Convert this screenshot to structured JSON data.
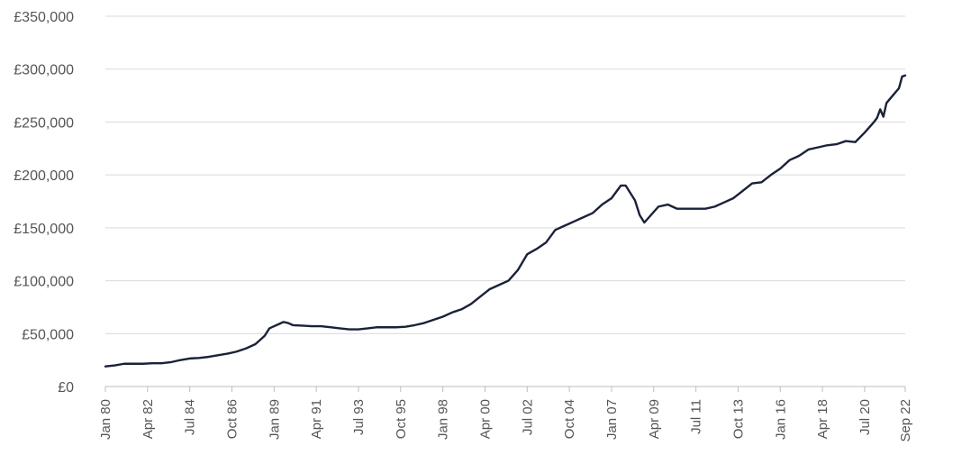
{
  "chart_data": {
    "type": "line",
    "title": "",
    "xlabel": "",
    "ylabel": "",
    "ylim": [
      0,
      350000
    ],
    "y_ticks": [
      0,
      50000,
      100000,
      150000,
      200000,
      250000,
      300000,
      350000
    ],
    "y_tick_labels": [
      "£0",
      "£50,000",
      "£100,000",
      "£150,000",
      "£200,000",
      "£250,000",
      "£300,000",
      "£350,000"
    ],
    "grid": true,
    "legend": "none",
    "x_tick_labels": [
      "Jan 80",
      "Apr 82",
      "Jul 84",
      "Oct 86",
      "Jan 89",
      "Apr 91",
      "Jul 93",
      "Oct 95",
      "Jan 98",
      "Apr 00",
      "Jul 02",
      "Oct 04",
      "Jan 07",
      "Apr 09",
      "Jul 11",
      "Oct 13",
      "Jan 16",
      "Apr 18",
      "Jul 20",
      "Sep 22"
    ],
    "x_tick_dates": [
      "1980-01",
      "1982-04",
      "1984-07",
      "1986-10",
      "1989-01",
      "1991-04",
      "1993-07",
      "1995-10",
      "1998-01",
      "2000-04",
      "2002-07",
      "2004-10",
      "2007-01",
      "2009-04",
      "2011-07",
      "2013-10",
      "2016-01",
      "2018-04",
      "2020-07",
      "2022-09"
    ],
    "xlim": [
      "1980-01",
      "2022-09"
    ],
    "series": [
      {
        "color": "#1a2238",
        "x": [
          "1980-01",
          "1980-07",
          "1981-01",
          "1981-07",
          "1982-01",
          "1982-07",
          "1983-01",
          "1983-07",
          "1984-01",
          "1984-07",
          "1985-01",
          "1985-07",
          "1986-01",
          "1986-07",
          "1987-01",
          "1987-07",
          "1988-01",
          "1988-04",
          "1988-07",
          "1988-10",
          "1989-01",
          "1989-04",
          "1989-07",
          "1989-10",
          "1990-01",
          "1990-07",
          "1991-01",
          "1991-07",
          "1992-01",
          "1992-07",
          "1993-01",
          "1993-07",
          "1994-01",
          "1994-07",
          "1995-01",
          "1995-07",
          "1996-01",
          "1996-07",
          "1997-01",
          "1997-07",
          "1998-01",
          "1998-07",
          "1999-01",
          "1999-07",
          "2000-01",
          "2000-07",
          "2001-01",
          "2001-07",
          "2002-01",
          "2002-07",
          "2003-01",
          "2003-07",
          "2004-01",
          "2004-07",
          "2005-01",
          "2005-07",
          "2006-01",
          "2006-07",
          "2007-01",
          "2007-07",
          "2007-10",
          "2008-01",
          "2008-04",
          "2008-07",
          "2008-10",
          "2009-01",
          "2009-04",
          "2009-07",
          "2010-01",
          "2010-07",
          "2011-01",
          "2011-07",
          "2012-01",
          "2012-07",
          "2013-01",
          "2013-07",
          "2014-01",
          "2014-07",
          "2015-01",
          "2015-07",
          "2016-01",
          "2016-07",
          "2017-01",
          "2017-07",
          "2018-01",
          "2018-07",
          "2019-01",
          "2019-07",
          "2020-01",
          "2020-07",
          "2021-01",
          "2021-03",
          "2021-05",
          "2021-07",
          "2021-09",
          "2022-01",
          "2022-05",
          "2022-07",
          "2022-09"
        ],
        "y": [
          19000,
          20000,
          21500,
          21500,
          21500,
          22000,
          22000,
          23000,
          25000,
          26500,
          27000,
          28000,
          29500,
          31000,
          33000,
          36000,
          40000,
          44000,
          48000,
          55000,
          57000,
          59000,
          61000,
          60000,
          58000,
          57500,
          57000,
          57000,
          56000,
          55000,
          54000,
          54000,
          55000,
          56000,
          56000,
          56000,
          56500,
          58000,
          60000,
          63000,
          66000,
          70000,
          73000,
          78000,
          85000,
          92000,
          96000,
          100000,
          110000,
          125000,
          130000,
          136000,
          148000,
          152000,
          156000,
          160000,
          164000,
          172000,
          178000,
          190000,
          190000,
          183000,
          176000,
          162000,
          155000,
          160000,
          165000,
          170000,
          172000,
          168000,
          168000,
          168000,
          168000,
          170000,
          174000,
          178000,
          185000,
          192000,
          193000,
          200000,
          206000,
          214000,
          218000,
          224000,
          226000,
          228000,
          229000,
          232000,
          231000,
          240000,
          250000,
          254000,
          262000,
          255000,
          268000,
          275000,
          282000,
          293000,
          294000
        ]
      }
    ]
  }
}
